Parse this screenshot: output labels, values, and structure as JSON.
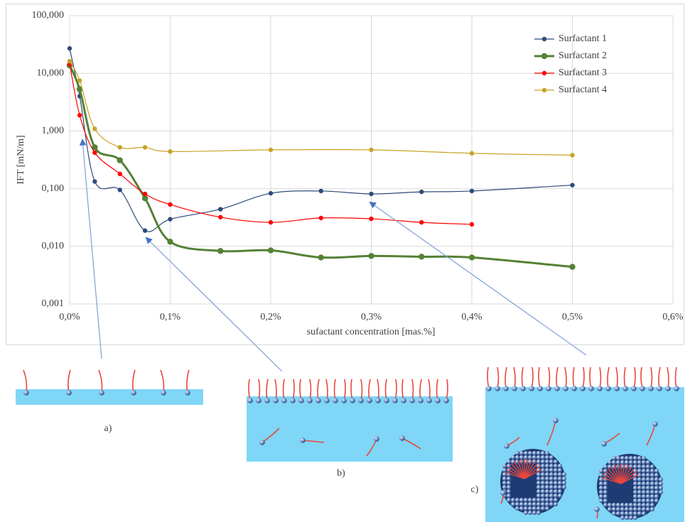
{
  "chart_data": {
    "type": "line",
    "x_label": "sufactant concentration [mas.%]",
    "y_label": "IFT [mN/m]",
    "log_y": true,
    "grid": true,
    "legend": "top-right",
    "xlim": [
      0,
      0.6
    ],
    "xticks": [
      {
        "value": 0,
        "label": "0,0%"
      },
      {
        "value": 0.1,
        "label": "0,1%"
      },
      {
        "value": 0.2,
        "label": "0,2%"
      },
      {
        "value": 0.3,
        "label": "0,3%"
      },
      {
        "value": 0.4,
        "label": "0,4%"
      },
      {
        "value": 0.5,
        "label": "0,5%"
      },
      {
        "value": 0.6,
        "label": "0,6%"
      }
    ],
    "ylim": [
      0.001,
      100
    ],
    "yticks": [
      {
        "value": 0.001,
        "label": "0,001"
      },
      {
        "value": 0.01,
        "label": "0,010"
      },
      {
        "value": 0.1,
        "label": "0,100"
      },
      {
        "value": 1,
        "label": "1,000"
      },
      {
        "value": 10,
        "label": "10,000"
      },
      {
        "value": 100,
        "label": "100,000"
      }
    ],
    "series": [
      {
        "name": "Surfactant 1",
        "color": "#2e4a7a",
        "width": 1.2,
        "marker": 3.2,
        "x": [
          0,
          0.01,
          0.025,
          0.05,
          0.075,
          0.1,
          0.15,
          0.2,
          0.25,
          0.3,
          0.35,
          0.4,
          0.5
        ],
        "values": [
          27,
          4.0,
          0.133,
          0.095,
          0.0187,
          0.0295,
          0.044,
          0.083,
          0.091,
          0.081,
          0.088,
          0.091,
          0.115
        ]
      },
      {
        "name": "Surfactant 2",
        "color": "#548235",
        "width": 3,
        "marker": 4.2,
        "x": [
          0,
          0.01,
          0.025,
          0.05,
          0.075,
          0.1,
          0.15,
          0.2,
          0.25,
          0.3,
          0.35,
          0.4,
          0.5
        ],
        "values": [
          13.7,
          5.3,
          0.52,
          0.31,
          0.068,
          0.012,
          0.0083,
          0.0085,
          0.0064,
          0.0068,
          0.0066,
          0.0064,
          0.0044
        ]
      },
      {
        "name": "Surfactant 3",
        "color": "#ff0000",
        "width": 1.2,
        "marker": 3.2,
        "x": [
          0,
          0.01,
          0.025,
          0.05,
          0.075,
          0.1,
          0.15,
          0.2,
          0.25,
          0.3,
          0.35,
          0.4
        ],
        "values": [
          14.5,
          1.87,
          0.42,
          0.18,
          0.081,
          0.053,
          0.032,
          0.026,
          0.031,
          0.03,
          0.026,
          0.024
        ]
      },
      {
        "name": "Surfactant 4",
        "color": "#c9a227",
        "width": 1.2,
        "marker": 3.2,
        "x": [
          0,
          0.01,
          0.025,
          0.05,
          0.075,
          0.1,
          0.2,
          0.3,
          0.4,
          0.5
        ],
        "values": [
          16.2,
          7.5,
          1.09,
          0.52,
          0.52,
          0.44,
          0.47,
          0.47,
          0.41,
          0.38
        ]
      }
    ],
    "annotations": [
      "a)",
      "b)",
      "c)"
    ]
  }
}
